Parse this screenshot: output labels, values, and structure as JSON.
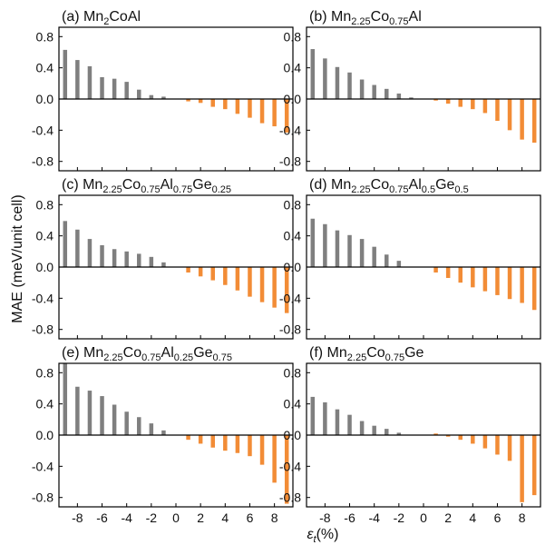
{
  "colors": {
    "negative_strain_bar": "#7f7f7f",
    "positive_strain_bar": "#f28c36",
    "axis": "#000000"
  },
  "figure": {
    "ylabel": "MAE (meV/unit cell)",
    "xlabel": {
      "symbol": "ε",
      "subscript": "t",
      "unit": "(%)"
    }
  },
  "chart_data": [
    {
      "type": "bar",
      "title": "(a) Mn2CoAl",
      "title_parts": [
        {
          "t": "(a) Mn",
          "s": false
        },
        {
          "t": "2",
          "s": true
        },
        {
          "t": "CoAl",
          "s": false
        }
      ],
      "x": [
        -9,
        -8,
        -7,
        -6,
        -5,
        -4,
        -3,
        -2,
        -1,
        0,
        1,
        2,
        3,
        4,
        5,
        6,
        7,
        8,
        9
      ],
      "values": [
        0.63,
        0.5,
        0.42,
        0.28,
        0.26,
        0.22,
        0.12,
        0.05,
        0.03,
        0.0,
        -0.03,
        -0.05,
        -0.1,
        -0.13,
        -0.19,
        -0.24,
        -0.31,
        -0.35,
        -0.43
      ],
      "xlim": [
        -9.5,
        9.5
      ],
      "ylim": [
        -0.92,
        0.92
      ],
      "yticks": [
        -0.8,
        -0.4,
        0.0,
        0.4,
        0.8
      ],
      "xticks": [
        -8,
        -6,
        -4,
        -2,
        0,
        2,
        4,
        6,
        8
      ],
      "ytick_labels": [
        "-0.8",
        "-0.4",
        "0.0",
        "0.4",
        "0.8"
      ],
      "xtick_labels": [
        "-8",
        "-6",
        "-4",
        "-2",
        "0",
        "2",
        "4",
        "6",
        "8"
      ]
    },
    {
      "type": "bar",
      "title": "(b) Mn2.25Co0.75Al",
      "title_parts": [
        {
          "t": "(b) Mn",
          "s": false
        },
        {
          "t": "2.25",
          "s": true
        },
        {
          "t": "Co",
          "s": false
        },
        {
          "t": "0.75",
          "s": true
        },
        {
          "t": "Al",
          "s": false
        }
      ],
      "x": [
        -9,
        -8,
        -7,
        -6,
        -5,
        -4,
        -3,
        -2,
        -1,
        0,
        1,
        2,
        3,
        4,
        5,
        6,
        7,
        8,
        9
      ],
      "values": [
        0.64,
        0.52,
        0.41,
        0.34,
        0.25,
        0.18,
        0.13,
        0.07,
        0.02,
        0.0,
        -0.02,
        -0.06,
        -0.1,
        -0.13,
        -0.18,
        -0.28,
        -0.4,
        -0.52,
        -0.56
      ],
      "xlim": [
        -9.5,
        9.5
      ],
      "ylim": [
        -0.92,
        0.92
      ],
      "yticks": [
        -0.8,
        -0.4,
        0.0,
        0.4,
        0.8
      ],
      "xticks": [
        -8,
        -6,
        -4,
        -2,
        0,
        2,
        4,
        6,
        8
      ],
      "ytick_labels": [
        "-0.8",
        "-0.4",
        "0.0",
        "0.4",
        "0.8"
      ],
      "xtick_labels": [
        "-8",
        "-6",
        "-4",
        "-2",
        "0",
        "2",
        "4",
        "6",
        "8"
      ]
    },
    {
      "type": "bar",
      "title": "(c) Mn2.25Co0.75Al0.75Ge0.25",
      "title_parts": [
        {
          "t": "(c) Mn",
          "s": false
        },
        {
          "t": "2.25",
          "s": true
        },
        {
          "t": "Co",
          "s": false
        },
        {
          "t": "0.75",
          "s": true
        },
        {
          "t": "Al",
          "s": false
        },
        {
          "t": "0.75",
          "s": true
        },
        {
          "t": "Ge",
          "s": false
        },
        {
          "t": "0.25",
          "s": true
        }
      ],
      "x": [
        -9,
        -8,
        -7,
        -6,
        -5,
        -4,
        -3,
        -2,
        -1,
        0,
        1,
        2,
        3,
        4,
        5,
        6,
        7,
        8,
        9
      ],
      "values": [
        0.59,
        0.48,
        0.36,
        0.28,
        0.23,
        0.2,
        0.17,
        0.13,
        0.06,
        0.0,
        -0.07,
        -0.12,
        -0.17,
        -0.23,
        -0.3,
        -0.38,
        -0.45,
        -0.52,
        -0.59
      ],
      "xlim": [
        -9.5,
        9.5
      ],
      "ylim": [
        -0.92,
        0.92
      ],
      "yticks": [
        -0.8,
        -0.4,
        0.0,
        0.4,
        0.8
      ],
      "xticks": [
        -8,
        -6,
        -4,
        -2,
        0,
        2,
        4,
        6,
        8
      ],
      "ytick_labels": [
        "-0.8",
        "-0.4",
        "0.0",
        "0.4",
        "0.8"
      ],
      "xtick_labels": [
        "-8",
        "-6",
        "-4",
        "-2",
        "0",
        "2",
        "4",
        "6",
        "8"
      ]
    },
    {
      "type": "bar",
      "title": "(d) Mn2.25Co0.75Al0.5Ge0.5",
      "title_parts": [
        {
          "t": "(d) Mn",
          "s": false
        },
        {
          "t": "2.25",
          "s": true
        },
        {
          "t": "Co",
          "s": false
        },
        {
          "t": "0.75",
          "s": true
        },
        {
          "t": "Al",
          "s": false
        },
        {
          "t": "0.5",
          "s": true
        },
        {
          "t": "Ge",
          "s": false
        },
        {
          "t": "0.5",
          "s": true
        }
      ],
      "x": [
        -9,
        -8,
        -7,
        -6,
        -5,
        -4,
        -3,
        -2,
        -1,
        0,
        1,
        2,
        3,
        4,
        5,
        6,
        7,
        8,
        9
      ],
      "values": [
        0.62,
        0.55,
        0.47,
        0.41,
        0.36,
        0.26,
        0.16,
        0.08,
        0.0,
        0.0,
        -0.07,
        -0.14,
        -0.2,
        -0.26,
        -0.31,
        -0.36,
        -0.41,
        -0.46,
        -0.55
      ],
      "xlim": [
        -9.5,
        9.5
      ],
      "ylim": [
        -0.92,
        0.92
      ],
      "yticks": [
        -0.8,
        -0.4,
        0.0,
        0.4,
        0.8
      ],
      "xticks": [
        -8,
        -6,
        -4,
        -2,
        0,
        2,
        4,
        6,
        8
      ],
      "ytick_labels": [
        "-0.8",
        "-0.4",
        "0.0",
        "0.4",
        "0.8"
      ],
      "xtick_labels": [
        "-8",
        "-6",
        "-4",
        "-2",
        "0",
        "2",
        "4",
        "6",
        "8"
      ]
    },
    {
      "type": "bar",
      "title": "(e) Mn2.25Co0.75Al0.25Ge0.75",
      "title_parts": [
        {
          "t": "(e) Mn",
          "s": false
        },
        {
          "t": "2.25",
          "s": true
        },
        {
          "t": "Co",
          "s": false
        },
        {
          "t": "0.75",
          "s": true
        },
        {
          "t": "Al",
          "s": false
        },
        {
          "t": "0.25",
          "s": true
        },
        {
          "t": "Ge",
          "s": false
        },
        {
          "t": "0.75",
          "s": true
        }
      ],
      "x": [
        -9,
        -8,
        -7,
        -6,
        -5,
        -4,
        -3,
        -2,
        -1,
        0,
        1,
        2,
        3,
        4,
        5,
        6,
        7,
        8,
        9
      ],
      "values": [
        0.92,
        0.62,
        0.57,
        0.5,
        0.39,
        0.3,
        0.23,
        0.15,
        0.06,
        0.0,
        -0.06,
        -0.11,
        -0.16,
        -0.2,
        -0.23,
        -0.27,
        -0.38,
        -0.61,
        -0.88
      ],
      "xlim": [
        -9.5,
        9.5
      ],
      "ylim": [
        -0.92,
        0.92
      ],
      "yticks": [
        -0.8,
        -0.4,
        0.0,
        0.4,
        0.8
      ],
      "xticks": [
        -8,
        -6,
        -4,
        -2,
        0,
        2,
        4,
        6,
        8
      ],
      "ytick_labels": [
        "-0.8",
        "-0.4",
        "0.0",
        "0.4",
        "0.8"
      ],
      "xtick_labels": [
        "-8",
        "-6",
        "-4",
        "-2",
        "0",
        "2",
        "4",
        "6",
        "8"
      ]
    },
    {
      "type": "bar",
      "title": "(f) Mn2.25Co0.75Ge",
      "title_parts": [
        {
          "t": "(f) Mn",
          "s": false
        },
        {
          "t": "2.25",
          "s": true
        },
        {
          "t": "Co",
          "s": false
        },
        {
          "t": "0.75",
          "s": true
        },
        {
          "t": "Ge",
          "s": false
        }
      ],
      "x": [
        -9,
        -8,
        -7,
        -6,
        -5,
        -4,
        -3,
        -2,
        -1,
        0,
        1,
        2,
        3,
        4,
        5,
        6,
        7,
        8,
        9
      ],
      "values": [
        0.49,
        0.42,
        0.33,
        0.26,
        0.18,
        0.12,
        0.08,
        0.03,
        0.0,
        0.0,
        0.02,
        -0.02,
        -0.06,
        -0.11,
        -0.17,
        -0.25,
        -0.33,
        -0.86,
        -0.77
      ],
      "xlim": [
        -9.5,
        9.5
      ],
      "ylim": [
        -0.92,
        0.92
      ],
      "yticks": [
        -0.8,
        -0.4,
        0.0,
        0.4,
        0.8
      ],
      "xticks": [
        -8,
        -6,
        -4,
        -2,
        0,
        2,
        4,
        6,
        8
      ],
      "ytick_labels": [
        "-0.8",
        "-0.4",
        "0.0",
        "0.4",
        "0.8"
      ],
      "xtick_labels": [
        "-8",
        "-6",
        "-4",
        "-2",
        "0",
        "2",
        "4",
        "6",
        "8"
      ]
    }
  ]
}
